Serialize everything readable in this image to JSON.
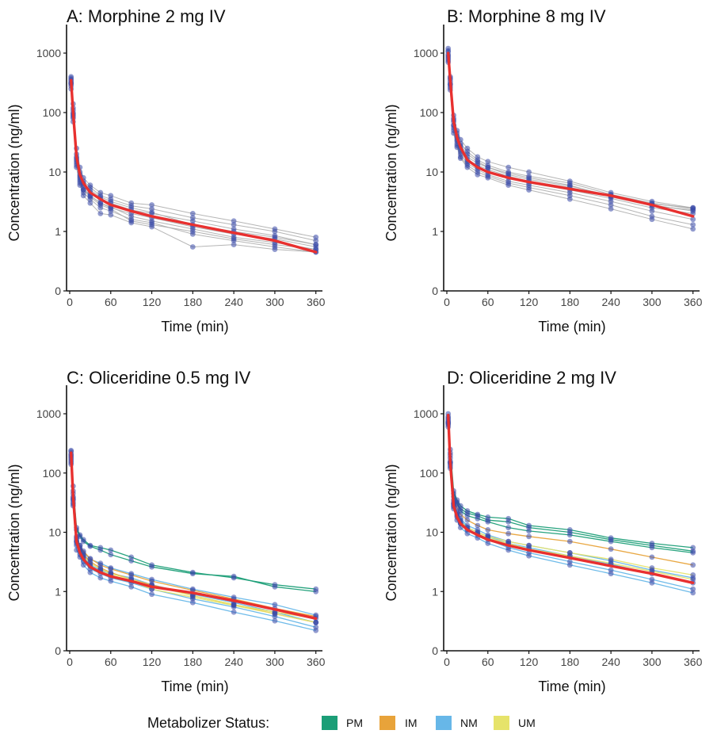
{
  "panels": [
    {
      "title": "A: Morphine 2 mg IV",
      "xlabel": "Time (min)",
      "ylabel": "Concentration (ng/ml)"
    },
    {
      "title": "B: Morphine 8 mg IV",
      "xlabel": "Time (min)",
      "ylabel": "Concentration (ng/ml)"
    },
    {
      "title": "C: Oliceridine 0.5 mg IV",
      "xlabel": "Time (min)",
      "ylabel": "Concentration (ng/ml)"
    },
    {
      "title": "D: Oliceridine 2 mg IV",
      "xlabel": "Time (min)",
      "ylabel": "Concentration (ng/ml)"
    }
  ],
  "legend": {
    "title": "Metabolizer Status:",
    "items": [
      {
        "label": "PM",
        "color": "#1b9e77"
      },
      {
        "label": "IM",
        "color": "#e8a33a"
      },
      {
        "label": "NM",
        "color": "#67b7e8"
      },
      {
        "label": "UM",
        "color": "#e6e36a"
      }
    ]
  },
  "chart_data": [
    {
      "type": "line",
      "title": "A: Morphine 2 mg IV",
      "xlabel": "Time (min)",
      "ylabel": "Concentration (ng/ml)",
      "y_scale": "log",
      "x_ticks": [
        0,
        60,
        120,
        180,
        240,
        300,
        360
      ],
      "y_ticks": [
        0,
        1,
        10,
        100,
        1000
      ],
      "xlim": [
        0,
        365
      ],
      "x": [
        2,
        5,
        10,
        15,
        20,
        30,
        45,
        60,
        90,
        120,
        180,
        240,
        300,
        360
      ],
      "mean_series": {
        "color": "#e8302f",
        "values": [
          350,
          100,
          18,
          9,
          6.5,
          4.5,
          3.5,
          2.8,
          2.2,
          1.8,
          1.3,
          0.95,
          0.7,
          0.45
        ]
      },
      "subjects": [
        {
          "values": [
            400,
            140,
            25,
            12,
            8,
            6,
            4.5,
            4,
            3,
            2.8,
            2,
            1.5,
            1.1,
            0.8
          ]
        },
        {
          "values": [
            380,
            120,
            20,
            10,
            7,
            5.5,
            4,
            3.5,
            2.7,
            2.4,
            1.7,
            1.3,
            1,
            0.7
          ]
        },
        {
          "values": [
            320,
            90,
            16,
            8,
            6,
            4.5,
            3.5,
            3,
            2.3,
            2,
            1.5,
            1.1,
            0.85,
            0.6
          ]
        },
        {
          "values": [
            280,
            80,
            14,
            7,
            5,
            4,
            3,
            2.5,
            2,
            1.7,
            1.2,
            0.9,
            0.75,
            0.55
          ]
        },
        {
          "values": [
            360,
            110,
            18,
            9,
            6.5,
            5,
            3.8,
            3.2,
            2.5,
            2.1,
            1.3,
            1,
            0.8,
            0.6
          ]
        },
        {
          "values": [
            300,
            85,
            13,
            6.5,
            4.5,
            3.5,
            2.5,
            2.2,
            1.6,
            1.4,
            0.9,
            0.7,
            0.55,
            0.45
          ]
        },
        {
          "values": [
            250,
            70,
            12,
            6,
            4,
            3,
            2,
            1.9,
            1.4,
            1.2,
            0.55,
            0.6,
            0.5,
            0.45
          ]
        },
        {
          "values": [
            340,
            100,
            17,
            8.5,
            5.5,
            4,
            3,
            2.6,
            1.8,
            1.5,
            1.1,
            0.8,
            0.65,
            0.5
          ]
        },
        {
          "values": [
            310,
            95,
            15,
            7.5,
            5,
            3.8,
            2.8,
            2.4,
            1.5,
            1.3,
            1,
            0.75,
            0.6,
            0.5
          ]
        }
      ]
    },
    {
      "type": "line",
      "title": "B: Morphine 8 mg IV",
      "xlabel": "Time (min)",
      "ylabel": "Concentration (ng/ml)",
      "y_scale": "log",
      "x_ticks": [
        0,
        60,
        120,
        180,
        240,
        300,
        360
      ],
      "y_ticks": [
        0,
        1,
        10,
        100,
        1000
      ],
      "xlim": [
        0,
        365
      ],
      "x": [
        2,
        5,
        10,
        15,
        20,
        30,
        45,
        60,
        90,
        120,
        180,
        240,
        300,
        360
      ],
      "mean_series": {
        "color": "#e8302f",
        "values": [
          1000,
          350,
          70,
          38,
          26,
          16,
          12,
          10,
          8,
          6.8,
          5.2,
          4,
          2.8,
          1.8
        ]
      },
      "subjects": [
        {
          "values": [
            1200,
            400,
            90,
            50,
            35,
            25,
            18,
            15,
            12,
            10,
            7,
            4.5,
            3.2,
            2.5
          ]
        },
        {
          "values": [
            1100,
            380,
            80,
            45,
            30,
            22,
            16,
            13,
            10,
            8.5,
            6.5,
            4.2,
            3,
            2.4
          ]
        },
        {
          "values": [
            950,
            330,
            70,
            38,
            26,
            18,
            14,
            12,
            9,
            7.5,
            5.8,
            4,
            2.8,
            2.2
          ]
        },
        {
          "values": [
            900,
            300,
            60,
            33,
            22,
            15,
            12,
            10,
            8,
            6.5,
            5,
            3.6,
            2.5,
            2
          ]
        },
        {
          "values": [
            1050,
            360,
            75,
            40,
            28,
            20,
            15,
            12,
            9.5,
            8,
            6,
            3.8,
            2.7,
            2.3
          ]
        },
        {
          "values": [
            800,
            280,
            55,
            30,
            20,
            14,
            11,
            9,
            7,
            6,
            4.5,
            3.2,
            2.2,
            1.6
          ]
        },
        {
          "values": [
            750,
            260,
            50,
            28,
            18,
            13,
            10,
            8.5,
            6.5,
            5.5,
            4,
            2.8,
            1.8,
            1.3
          ]
        },
        {
          "values": [
            700,
            240,
            45,
            26,
            17,
            12,
            9,
            8,
            6,
            5,
            3.5,
            2.4,
            1.6,
            1.1
          ]
        },
        {
          "values": [
            850,
            300,
            62,
            35,
            24,
            16,
            13,
            11,
            8.5,
            7,
            5.5,
            3.9,
            2.9,
            2.5
          ]
        }
      ]
    },
    {
      "type": "line",
      "title": "C: Oliceridine 0.5 mg IV",
      "xlabel": "Time (min)",
      "ylabel": "Concentration (ng/ml)",
      "y_scale": "log",
      "x_ticks": [
        0,
        60,
        120,
        180,
        240,
        300,
        360
      ],
      "y_ticks": [
        0,
        1,
        10,
        100,
        1000
      ],
      "xlim": [
        0,
        365
      ],
      "x": [
        2,
        5,
        10,
        15,
        20,
        30,
        45,
        60,
        90,
        120,
        180,
        240,
        300,
        360
      ],
      "mean_series": {
        "color": "#e8302f",
        "values": [
          220,
          40,
          7,
          4.5,
          3.5,
          2.6,
          2.1,
          1.8,
          1.5,
          1.2,
          0.95,
          0.7,
          0.5,
          0.35
        ]
      },
      "subjects": [
        {
          "status": "PM",
          "values": [
            240,
            60,
            12,
            9,
            7.5,
            6,
            5.5,
            5,
            3.8,
            2.8,
            2.1,
            1.7,
            1.3,
            1.1
          ]
        },
        {
          "status": "PM",
          "values": [
            230,
            50,
            11,
            8.5,
            7,
            5.8,
            5,
            4.2,
            3.3,
            2.6,
            2,
            1.8,
            1.2,
            1
          ]
        },
        {
          "status": "NM",
          "values": [
            200,
            40,
            8,
            6,
            4.5,
            3.5,
            3,
            2.5,
            2,
            1.6,
            1.1,
            0.8,
            0.6,
            0.4
          ]
        },
        {
          "status": "NM",
          "values": [
            180,
            35,
            7,
            5,
            3.8,
            2.8,
            2.3,
            2,
            1.7,
            1.3,
            0.9,
            0.65,
            0.45,
            0.3
          ]
        },
        {
          "status": "NM",
          "values": [
            160,
            30,
            6,
            4.2,
            3.2,
            2.4,
            2,
            1.7,
            1.4,
            1.1,
            0.75,
            0.55,
            0.38,
            0.25
          ]
        },
        {
          "status": "NM",
          "values": [
            140,
            28,
            5,
            3.8,
            2.8,
            2.1,
            1.7,
            1.5,
            1.2,
            0.9,
            0.65,
            0.45,
            0.32,
            0.22
          ]
        },
        {
          "status": "IM",
          "values": [
            210,
            45,
            8.5,
            6,
            4.8,
            3.6,
            2.8,
            2.4,
            1.9,
            1.5,
            1.05,
            0.75,
            0.52,
            0.38
          ]
        },
        {
          "status": "IM",
          "values": [
            190,
            38,
            7.5,
            5.5,
            4.2,
            3.2,
            2.5,
            2.1,
            1.6,
            1.3,
            0.85,
            0.6,
            0.42,
            0.3
          ]
        },
        {
          "status": "UM",
          "values": [
            170,
            36,
            7,
            5.2,
            4,
            3,
            2.4,
            2,
            1.6,
            1.25,
            0.85,
            0.6,
            0.45,
            0.35
          ]
        },
        {
          "status": "UM",
          "values": [
            150,
            32,
            6.5,
            4.8,
            3.6,
            2.7,
            2.2,
            1.9,
            1.5,
            1.1,
            0.8,
            0.58,
            0.42,
            0.3
          ]
        }
      ]
    },
    {
      "type": "line",
      "title": "D: Oliceridine 2 mg IV",
      "xlabel": "Time (min)",
      "ylabel": "Concentration (ng/ml)",
      "y_scale": "log",
      "x_ticks": [
        0,
        60,
        120,
        180,
        240,
        300,
        360
      ],
      "y_ticks": [
        0,
        1,
        10,
        100,
        1000
      ],
      "xlim": [
        0,
        365
      ],
      "x": [
        2,
        5,
        10,
        15,
        20,
        30,
        45,
        60,
        90,
        120,
        180,
        240,
        300,
        360
      ],
      "mean_series": {
        "color": "#e8302f",
        "values": [
          950,
          150,
          28,
          18,
          14,
          11,
          9,
          7.5,
          6,
          5,
          3.7,
          2.7,
          2,
          1.4
        ]
      },
      "subjects": [
        {
          "status": "PM",
          "values": [
            1000,
            250,
            50,
            35,
            28,
            23,
            20,
            18,
            17,
            13,
            11,
            8,
            6.5,
            5.5
          ]
        },
        {
          "status": "PM",
          "values": [
            900,
            220,
            45,
            32,
            25,
            21,
            19,
            16,
            15,
            12,
            10,
            7.5,
            6,
            4.8
          ]
        },
        {
          "status": "PM",
          "values": [
            850,
            200,
            40,
            30,
            23,
            19,
            17,
            15,
            12,
            10.5,
            9,
            7,
            5.5,
            4.5
          ]
        },
        {
          "status": "IM",
          "values": [
            800,
            180,
            35,
            26,
            20,
            16,
            13,
            11,
            9.5,
            8.5,
            7,
            5.2,
            3.8,
            2.8
          ]
        },
        {
          "status": "NM",
          "values": [
            700,
            150,
            30,
            21,
            16,
            12,
            10,
            8.5,
            6.5,
            5.5,
            4,
            2.9,
            2,
            1.4
          ]
        },
        {
          "status": "NM",
          "values": [
            650,
            130,
            27,
            18,
            14,
            11,
            9,
            7.5,
            5.5,
            4.5,
            3.2,
            2.3,
            1.6,
            1.1
          ]
        },
        {
          "status": "NM",
          "values": [
            600,
            120,
            25,
            16,
            12,
            9.5,
            8,
            6.5,
            5,
            4,
            2.8,
            2,
            1.4,
            0.95
          ]
        },
        {
          "status": "NM",
          "values": [
            750,
            160,
            32,
            22,
            17,
            13,
            11,
            9,
            7,
            6,
            4.5,
            3.3,
            2.3,
            1.7
          ]
        },
        {
          "status": "UM",
          "values": [
            720,
            150,
            30,
            20,
            15,
            12,
            10,
            8.5,
            7,
            6,
            4.5,
            3.5,
            2.5,
            1.9
          ]
        },
        {
          "status": "UM",
          "values": [
            680,
            140,
            28,
            19,
            14,
            11,
            9.5,
            8,
            6.5,
            5.2,
            4,
            3,
            2.2,
            1.6
          ]
        }
      ]
    }
  ]
}
